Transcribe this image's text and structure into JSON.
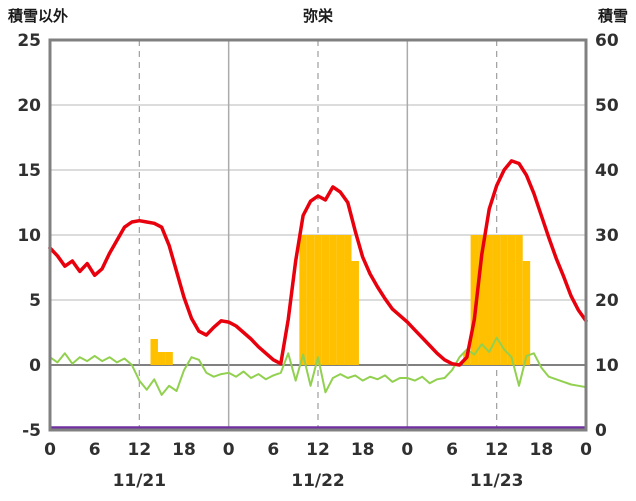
{
  "chart_data": {
    "type": "line",
    "title": "弥栄",
    "left_axis": {
      "title": "積雪以外",
      "min": -5,
      "max": 25,
      "ticks": [
        25,
        20,
        15,
        10,
        5,
        0,
        -5
      ]
    },
    "right_axis": {
      "title": "積雪",
      "min": 0,
      "max": 60,
      "ticks": [
        60,
        50,
        40,
        30,
        20,
        10,
        0
      ]
    },
    "x_axis": {
      "unit": "hour",
      "range": [
        0,
        72
      ],
      "tick_hours": [
        0,
        6,
        12,
        18,
        24,
        30,
        36,
        42,
        48,
        54,
        60,
        66,
        72
      ],
      "tick_labels": [
        "0",
        "6",
        "12",
        "18",
        "0",
        "6",
        "12",
        "18",
        "0",
        "6",
        "12",
        "18",
        "0"
      ],
      "day_boundary_hours": [
        24,
        48
      ],
      "noon_hours": [
        12,
        36,
        60
      ],
      "date_labels": [
        {
          "label": "11/21",
          "center_hour": 12
        },
        {
          "label": "11/22",
          "center_hour": 36
        },
        {
          "label": "11/23",
          "center_hour": 60
        }
      ]
    },
    "series": [
      {
        "name": "green-line",
        "color": "#92D050",
        "width": 2,
        "axis": "left",
        "values": [
          0.6,
          0.2,
          0.9,
          0.1,
          0.6,
          0.3,
          0.7,
          0.3,
          0.6,
          0.2,
          0.5,
          0.0,
          -1.2,
          -1.9,
          -1.1,
          -2.3,
          -1.6,
          -2.0,
          -0.4,
          0.6,
          0.4,
          -0.6,
          -0.9,
          -0.7,
          -0.6,
          -0.9,
          -0.5,
          -1.0,
          -0.7,
          -1.1,
          -0.8,
          -0.6,
          0.9,
          -1.2,
          0.8,
          -1.6,
          0.6,
          -2.1,
          -1.0,
          -0.7,
          -1.0,
          -0.8,
          -1.2,
          -0.9,
          -1.1,
          -0.8,
          -1.3,
          -1.0,
          -1.0,
          -1.2,
          -0.9,
          -1.4,
          -1.1,
          -1.0,
          -0.4,
          0.6,
          1.2,
          0.8,
          1.6,
          1.0,
          2.1,
          1.2,
          0.6,
          -1.6,
          0.7,
          0.9,
          -0.2,
          -0.9,
          -1.1,
          -1.3,
          -1.5,
          -1.6,
          -1.7
        ]
      },
      {
        "name": "red-line",
        "color": "#E8000D",
        "width": 3.5,
        "axis": "left",
        "values": [
          9.0,
          8.4,
          7.6,
          8.0,
          7.2,
          7.8,
          6.9,
          7.4,
          8.6,
          9.6,
          10.6,
          11.0,
          11.1,
          11.0,
          10.9,
          10.6,
          9.2,
          7.2,
          5.2,
          3.6,
          2.6,
          2.3,
          2.9,
          3.4,
          3.3,
          3.0,
          2.5,
          2.0,
          1.4,
          0.9,
          0.4,
          0.1,
          3.5,
          8.0,
          11.5,
          12.6,
          13.0,
          12.7,
          13.7,
          13.3,
          12.5,
          10.3,
          8.3,
          7.0,
          6.0,
          5.1,
          4.3,
          3.8,
          3.3,
          2.7,
          2.1,
          1.5,
          0.9,
          0.4,
          0.1,
          0.0,
          0.6,
          3.5,
          8.5,
          12.0,
          13.8,
          15.0,
          15.7,
          15.5,
          14.6,
          13.2,
          11.5,
          9.8,
          8.2,
          6.8,
          5.3,
          4.2,
          3.4
        ]
      }
    ],
    "bars": {
      "name": "orange-bars",
      "color": "#FFC000",
      "axis": "left",
      "values": [
        {
          "hour": 14,
          "value": 2
        },
        {
          "hour": 15,
          "value": 1
        },
        {
          "hour": 16,
          "value": 1
        },
        {
          "hour": 34,
          "value": 10
        },
        {
          "hour": 35,
          "value": 10
        },
        {
          "hour": 36,
          "value": 10
        },
        {
          "hour": 37,
          "value": 10
        },
        {
          "hour": 38,
          "value": 10
        },
        {
          "hour": 39,
          "value": 10
        },
        {
          "hour": 40,
          "value": 10
        },
        {
          "hour": 41,
          "value": 8
        },
        {
          "hour": 56,
          "value": 1
        },
        {
          "hour": 57,
          "value": 10
        },
        {
          "hour": 58,
          "value": 10
        },
        {
          "hour": 59,
          "value": 10
        },
        {
          "hour": 60,
          "value": 10
        },
        {
          "hour": 61,
          "value": 10
        },
        {
          "hour": 62,
          "value": 10
        },
        {
          "hour": 63,
          "value": 10
        },
        {
          "hour": 64,
          "value": 8
        }
      ]
    },
    "snow_depth_line": {
      "name": "purple-line",
      "color": "#7030A0",
      "width": 3.5,
      "value_left_axis": -5,
      "value_right_axis": 0
    },
    "colors": {
      "frame": "#808080",
      "grid": "#C6C6C6",
      "grid_day": "#ABABAB",
      "grid_dashed": "#9E9E9E",
      "zero_line": "#808080",
      "label": "#303030"
    }
  }
}
